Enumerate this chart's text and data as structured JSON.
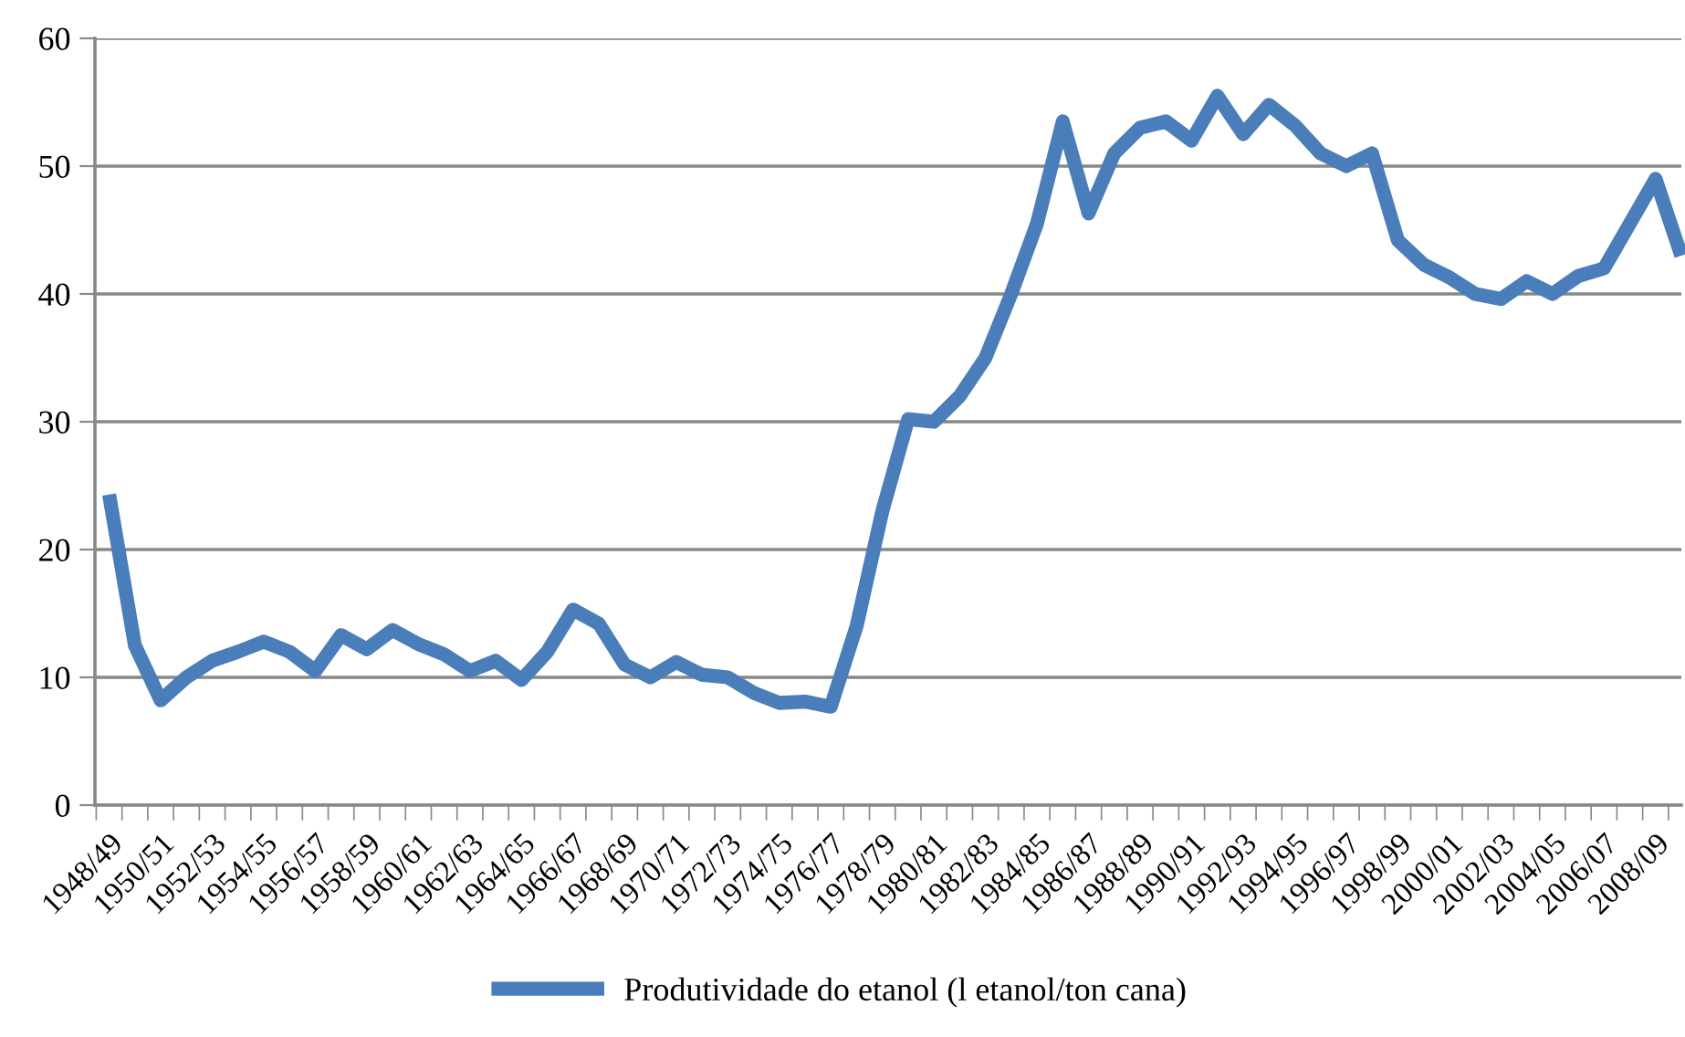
{
  "chart_data": {
    "type": "line",
    "categories": [
      "1948/49",
      null,
      "1950/51",
      null,
      "1952/53",
      null,
      "1954/55",
      null,
      "1956/57",
      null,
      "1958/59",
      null,
      "1960/61",
      null,
      "1962/63",
      null,
      "1964/65",
      null,
      "1966/67",
      null,
      "1968/69",
      null,
      "1970/71",
      null,
      "1972/73",
      null,
      "1974/75",
      null,
      "1976/77",
      null,
      "1978/79",
      null,
      "1980/81",
      null,
      "1982/83",
      null,
      "1984/85",
      null,
      "1986/87",
      null,
      "1988/89",
      null,
      "1990/91",
      null,
      "1992/93",
      null,
      "1994/95",
      null,
      "1996/97",
      null,
      "1998/99",
      null,
      "2000/01",
      null,
      "2002/03",
      null,
      "2004/05",
      null,
      "2006/07",
      null,
      "2008/09",
      null
    ],
    "series": [
      {
        "name": "Produtividade do etanol (l etanol/ton cana)",
        "color": "#4a7ebb",
        "values": [
          24.3,
          12.5,
          8.2,
          10,
          11.3,
          12,
          12.8,
          12,
          10.5,
          13.3,
          12.2,
          13.7,
          12.6,
          11.8,
          10.5,
          11.3,
          9.8,
          12,
          15.3,
          14.2,
          11,
          10,
          11.2,
          10.2,
          10,
          8.8,
          8,
          8.1,
          7.7,
          14,
          23,
          30.2,
          30,
          32,
          35,
          40,
          45.5,
          53.5,
          46.3,
          51,
          53,
          53.5,
          52,
          55.5,
          52.5,
          54.8,
          53.2,
          51,
          50,
          51,
          44.2,
          42.3,
          41.3,
          40,
          39.6,
          41,
          40,
          41.4,
          42,
          45.5,
          49,
          43
        ]
      }
    ],
    "ylim": [
      0,
      60
    ],
    "yticks": [
      0,
      10,
      20,
      30,
      40,
      50,
      60
    ],
    "grid": "y",
    "legend": "bottom",
    "marker": "none",
    "line_style": "solid"
  }
}
